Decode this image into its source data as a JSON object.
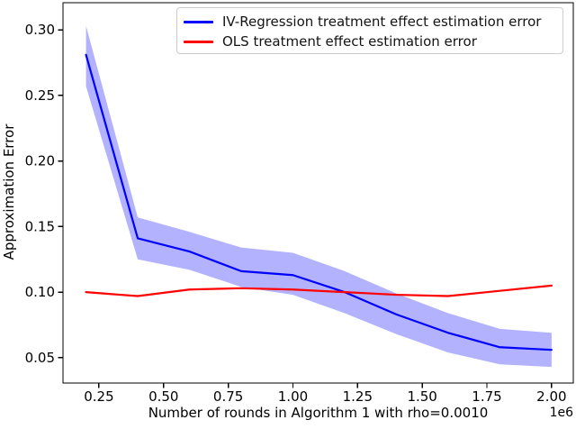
{
  "chart_data": {
    "type": "line",
    "title": "",
    "xlabel": "Number of rounds in Algorithm 1 with rho=0.0010",
    "ylabel": "Approximation Error",
    "x_offset_label": "1e6",
    "x_units_note": "x values are in units of 1e6 rounds",
    "x": [
      0.2,
      0.4,
      0.6,
      0.8,
      1.0,
      1.2,
      1.4,
      1.6,
      1.8,
      2.0
    ],
    "series": [
      {
        "id": "iv-regression",
        "name": "IV-Regression treatment effect estimation error",
        "color": "#0000ff",
        "values": [
          0.281,
          0.141,
          0.131,
          0.116,
          0.113,
          0.1,
          0.083,
          0.069,
          0.058,
          0.056
        ],
        "band_upper": [
          0.303,
          0.157,
          0.146,
          0.134,
          0.13,
          0.116,
          0.099,
          0.084,
          0.072,
          0.069
        ],
        "band_lower": [
          0.257,
          0.125,
          0.117,
          0.104,
          0.098,
          0.084,
          0.068,
          0.054,
          0.045,
          0.043
        ],
        "band_color": "rgba(0,0,255,0.30)"
      },
      {
        "id": "ols",
        "name": "OLS treatment effect estimation error",
        "color": "#ff0000",
        "values": [
          0.1,
          0.097,
          0.102,
          0.103,
          0.102,
          0.1,
          0.098,
          0.097,
          0.101,
          0.105
        ]
      }
    ],
    "xlim": [
      0.111,
      2.084
    ],
    "ylim": [
      0.0307,
      0.3207
    ],
    "xticks": [
      0.25,
      0.5,
      0.75,
      1.0,
      1.25,
      1.5,
      1.75,
      2.0
    ],
    "xtick_labels": [
      "0.25",
      "0.50",
      "0.75",
      "1.00",
      "1.25",
      "1.50",
      "1.75",
      "2.00"
    ],
    "yticks": [
      0.05,
      0.1,
      0.15,
      0.2,
      0.25,
      0.3
    ],
    "ytick_labels": [
      "0.05",
      "0.10",
      "0.15",
      "0.20",
      "0.25",
      "0.30"
    ],
    "legend_position": "upper right",
    "grid": false
  }
}
